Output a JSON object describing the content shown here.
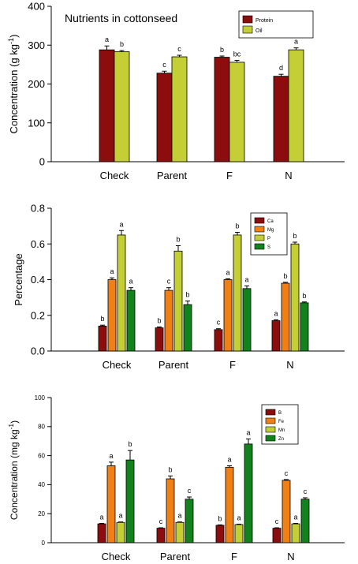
{
  "chart_data": [
    {
      "type": "bar",
      "title": "Nutrients in cottonseed",
      "xlabel": "",
      "ylabel": "Concentration (g kg",
      "ylabel_sup": "-1",
      "ylabel_tail": ")",
      "categories": [
        "Check",
        "Parent",
        "F",
        "N"
      ],
      "ylim": [
        0,
        400
      ],
      "yticks": [
        "0",
        "100",
        "200",
        "300",
        "400"
      ],
      "legend_position": "top-right",
      "series": [
        {
          "name": "Protein",
          "color": "#8b0d0d",
          "values": [
            288,
            228,
            269,
            220
          ],
          "errors": [
            10,
            5,
            3,
            5
          ],
          "letters": [
            "a",
            "c",
            "b",
            "d"
          ]
        },
        {
          "name": "Oil",
          "color": "#c3cf34",
          "values": [
            283,
            270,
            256,
            288
          ],
          "errors": [
            3,
            4,
            5,
            5
          ],
          "letters": [
            "b",
            "c",
            "bc",
            "a"
          ]
        }
      ]
    },
    {
      "type": "bar",
      "title": "",
      "xlabel": "",
      "ylabel": "Percentage",
      "ylabel_sup": "",
      "ylabel_tail": "",
      "categories": [
        "Check",
        "Parent",
        "F",
        "N"
      ],
      "ylim": [
        0,
        0.8
      ],
      "yticks": [
        "0.0",
        "0.2",
        "0.4",
        "0.6",
        "0.8"
      ],
      "legend_position": "top-left",
      "series": [
        {
          "name": "Ca",
          "color": "#8b0d0d",
          "values": [
            0.14,
            0.13,
            0.12,
            0.17
          ],
          "errors": [
            0.005,
            0.005,
            0.005,
            0.005
          ],
          "letters": [
            "b",
            "b",
            "c",
            "a"
          ]
        },
        {
          "name": "Mg",
          "color": "#f07f14",
          "values": [
            0.4,
            0.34,
            0.4,
            0.38
          ],
          "errors": [
            0.01,
            0.015,
            0.005,
            0.005
          ],
          "letters": [
            "a",
            "c",
            "a",
            "b"
          ]
        },
        {
          "name": "P",
          "color": "#c3cf34",
          "values": [
            0.65,
            0.56,
            0.65,
            0.6
          ],
          "errors": [
            0.025,
            0.03,
            0.015,
            0.01
          ],
          "letters": [
            "a",
            "b",
            "b",
            "b"
          ]
        },
        {
          "name": "S",
          "color": "#12821c",
          "values": [
            0.34,
            0.26,
            0.35,
            0.27
          ],
          "errors": [
            0.015,
            0.02,
            0.015,
            0.005
          ],
          "letters": [
            "a",
            "b",
            "a",
            "b"
          ]
        }
      ]
    },
    {
      "type": "bar",
      "title": "",
      "xlabel": "",
      "ylabel": "Concentration (mg kg",
      "ylabel_sup": "-1",
      "ylabel_tail": ")",
      "categories": [
        "Check",
        "Parent",
        "F",
        "N"
      ],
      "ylim": [
        0,
        100
      ],
      "yticks": [
        "0",
        "20",
        "40",
        "60",
        "80",
        "100"
      ],
      "legend_position": "top-right",
      "series": [
        {
          "name": "B",
          "color": "#8b0d0d",
          "values": [
            13,
            10,
            12,
            10
          ],
          "errors": [
            0.3,
            0.3,
            0.3,
            0.3
          ],
          "letters": [
            "a",
            "c",
            "b",
            "c"
          ]
        },
        {
          "name": "Fe",
          "color": "#f07f14",
          "values": [
            53,
            44,
            52,
            43
          ],
          "errors": [
            2.5,
            2,
            1,
            0.5
          ],
          "letters": [
            "a",
            "b",
            "a",
            "c"
          ]
        },
        {
          "name": "Mn",
          "color": "#c3cf34",
          "values": [
            14,
            14,
            12.5,
            13
          ],
          "errors": [
            0.3,
            0.3,
            0.3,
            0.3
          ],
          "letters": [
            "a",
            "a",
            "a",
            "a"
          ]
        },
        {
          "name": "Zn",
          "color": "#12821c",
          "values": [
            57,
            30,
            68,
            30
          ],
          "errors": [
            6.5,
            1.5,
            3.5,
            1
          ],
          "letters": [
            "b",
            "c",
            "a",
            "c"
          ]
        }
      ]
    }
  ]
}
